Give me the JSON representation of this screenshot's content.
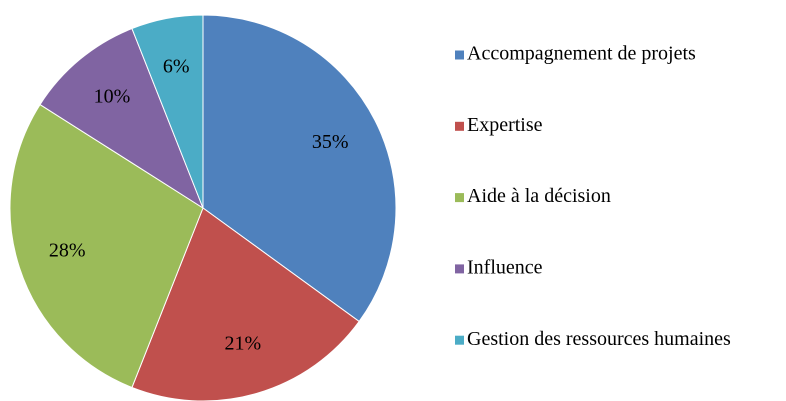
{
  "chart_data": {
    "type": "pie",
    "categories": [
      "Accompagnement de projets",
      "Expertise",
      "Aide à la décision",
      "Influence",
      "Gestion des ressources humaines"
    ],
    "values": [
      35,
      21,
      28,
      10,
      6
    ],
    "value_labels": [
      "35%",
      "21%",
      "28%",
      "10%",
      "6%"
    ],
    "colors": [
      "#4f81bd",
      "#c0504d",
      "#9bbb59",
      "#8064a2",
      "#4bacc6"
    ],
    "legend": "right"
  }
}
